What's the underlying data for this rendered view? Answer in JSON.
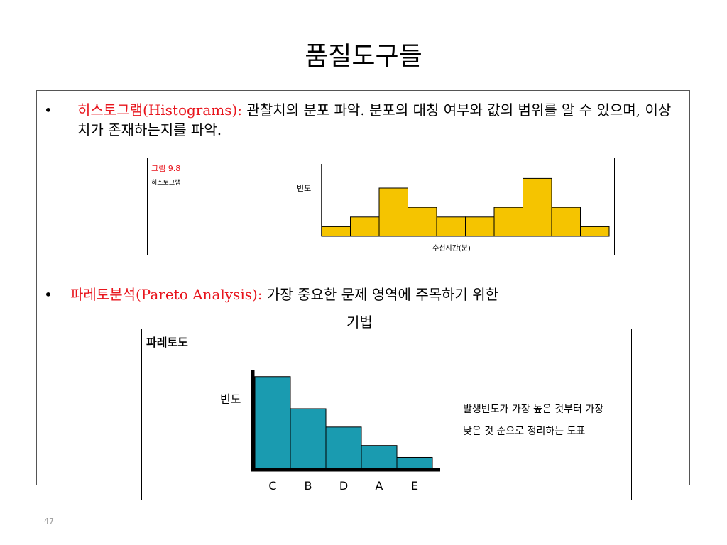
{
  "slide": {
    "title": "품질도구들",
    "bullet_char": "•",
    "page_number": "47"
  },
  "bullets": [
    {
      "term": "히스토그램(Histograms):",
      "text": " 관찰치의 분포 파악. 분포의 대칭 여부와 값의 범위를 알 수 있으며, 이상치가 존재하는지를 파악."
    },
    {
      "term": "파레토분석(Pareto Analysis):",
      "text": " 가장 중요한 문제 영역에 주목하기 위한",
      "continuation": "기법"
    }
  ],
  "histogram_figure": {
    "figure_label": "그림 9.8",
    "figure_title": "히스토그램",
    "colors": {
      "bar": "#f5c400",
      "label": "#e8141c"
    }
  },
  "pareto_figure": {
    "title": "파레토도",
    "description_line1": "발생빈도가 가장 높은 것부터 가장",
    "description_line2": "낮은 것 순으로 정리하는 도표",
    "colors": {
      "bar": "#1a9bb0"
    }
  },
  "chart_data": [
    {
      "type": "bar",
      "title": "",
      "xlabel": "수선시간(분)",
      "ylabel": "빈도",
      "categories": [
        "",
        "",
        "",
        "",
        "",
        "",
        "",
        "",
        "",
        ""
      ],
      "values": [
        1,
        2,
        5,
        3,
        2,
        2,
        3,
        6,
        3,
        1
      ],
      "ylim": [
        0,
        7.5
      ],
      "grid": false
    },
    {
      "type": "bar",
      "title": "",
      "xlabel": "",
      "ylabel": "빈도",
      "categories": [
        "C",
        "B",
        "D",
        "A",
        "E"
      ],
      "values": [
        10,
        6.5,
        4.5,
        2.5,
        1.2
      ],
      "ylim": [
        0,
        10.6
      ],
      "grid": false
    }
  ]
}
